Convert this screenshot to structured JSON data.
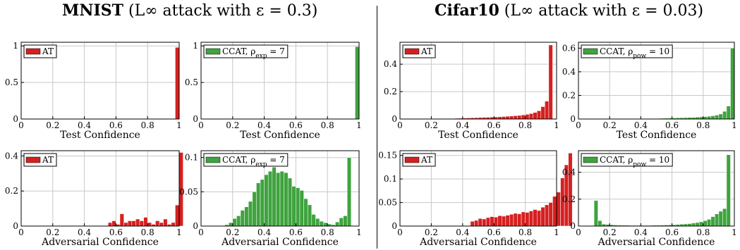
{
  "titles": {
    "left": {
      "bold": "MNIST",
      "rest": " (L∞ attack with ε = 0.3)"
    },
    "right": {
      "bold": "Cifar10",
      "rest": " (L∞ attack with ε = 0.03)"
    }
  },
  "colors": {
    "AT": "#d62020",
    "CCAT": "#3fa33f",
    "grid": "#c8c8c8"
  },
  "chart_data": [
    {
      "id": "mnist-test-at",
      "type": "bar",
      "xlabel": "Test Confidence",
      "ylabel": "",
      "xlim": [
        0,
        1
      ],
      "ylim": [
        0,
        1.05
      ],
      "xticks": [
        "0",
        "0.2",
        "0.4",
        "0.6",
        "0.8",
        "1"
      ],
      "yticks": [
        {
          "v": 0,
          "label": "0"
        },
        {
          "v": 0.5,
          "label": "0.5"
        },
        {
          "v": 1,
          "label": "1"
        }
      ],
      "legend": "AT",
      "legend_sub": "",
      "legend_tail": "",
      "color_key": "AT",
      "bins_start": 0.975,
      "bin_width": 0.025,
      "values": [
        0.98
      ]
    },
    {
      "id": "mnist-test-ccat",
      "type": "bar",
      "xlabel": "Test Confidence",
      "ylabel": "",
      "xlim": [
        0,
        1
      ],
      "ylim": [
        0,
        1.05
      ],
      "xticks": [
        "0",
        "0.2",
        "0.4",
        "0.6",
        "0.8",
        "1"
      ],
      "yticks": [
        {
          "v": 0,
          "label": "0"
        },
        {
          "v": 0.5,
          "label": "0.5"
        },
        {
          "v": 1,
          "label": "1"
        }
      ],
      "legend": "CCAT, ρ",
      "legend_sub": "exp",
      "legend_tail": " = 7",
      "color_key": "CCAT",
      "bins_start": 0.975,
      "bin_width": 0.025,
      "values": [
        0.99
      ]
    },
    {
      "id": "mnist-adv-at",
      "type": "bar",
      "xlabel": "Adversarial Confidence",
      "ylabel": "",
      "xlim": [
        0,
        1
      ],
      "ylim": [
        0,
        0.43
      ],
      "xticks": [
        "0",
        "0.2",
        "0.4",
        "0.6",
        "0.8",
        "1"
      ],
      "yticks": [
        {
          "v": 0,
          "label": "0"
        },
        {
          "v": 0.2,
          "label": "0.2"
        },
        {
          "v": 0.4,
          "label": "0.4"
        }
      ],
      "legend": "AT",
      "legend_sub": "",
      "legend_tail": "",
      "color_key": "AT",
      "bins_start": 0.55,
      "bin_width": 0.025,
      "values": [
        0.02,
        0.03,
        0.01,
        0.07,
        0.02,
        0.03,
        0.03,
        0.04,
        0.03,
        0.05,
        0.02,
        0.01,
        0.03,
        0.02,
        0.04,
        0.01,
        0.02,
        0.12,
        0.42
      ]
    },
    {
      "id": "mnist-adv-ccat",
      "type": "bar",
      "xlabel": "Adversarial Confidence",
      "ylabel": "",
      "xlim": [
        0,
        1
      ],
      "ylim": [
        0,
        0.11
      ],
      "xticks": [
        "0",
        "0.2",
        "0.4",
        "0.6",
        "0.8",
        "1"
      ],
      "yticks": [
        {
          "v": 0,
          "label": "0"
        },
        {
          "v": 0.05,
          "label": "0.05"
        },
        {
          "v": 0.1,
          "label": "0.1"
        }
      ],
      "legend": "CCAT, ρ",
      "legend_sub": "exp",
      "legend_tail": " = 7",
      "color_key": "CCAT",
      "bins_start": 0.15,
      "bin_width": 0.025,
      "values": [
        0.002,
        0.005,
        0.011,
        0.015,
        0.023,
        0.028,
        0.036,
        0.05,
        0.063,
        0.068,
        0.075,
        0.08,
        0.086,
        0.078,
        0.08,
        0.078,
        0.07,
        0.058,
        0.056,
        0.052,
        0.04,
        0.031,
        0.017,
        0.011,
        0.007,
        0.005,
        0.003,
        0.002,
        0.006,
        0.012,
        0.015,
        0.1
      ]
    },
    {
      "id": "cifar-test-at",
      "type": "bar",
      "xlabel": "Test Confidence",
      "ylabel": "",
      "xlim": [
        0,
        1
      ],
      "ylim": [
        0,
        0.56
      ],
      "xticks": [
        "0",
        "0.2",
        "0.4",
        "0.6",
        "0.8",
        "1"
      ],
      "yticks": [
        {
          "v": 0,
          "label": "0"
        },
        {
          "v": 0.2,
          "label": "0.2"
        },
        {
          "v": 0.4,
          "label": "0.4"
        }
      ],
      "legend": "AT",
      "legend_sub": "",
      "legend_tail": "",
      "color_key": "AT",
      "bins_start": 0.25,
      "bin_width": 0.025,
      "values": [
        0.001,
        0.002,
        0.003,
        0.004,
        0.005,
        0.006,
        0.007,
        0.008,
        0.009,
        0.01,
        0.011,
        0.012,
        0.013,
        0.014,
        0.015,
        0.016,
        0.018,
        0.02,
        0.022,
        0.024,
        0.026,
        0.03,
        0.034,
        0.04,
        0.048,
        0.06,
        0.09,
        0.13,
        0.54
      ]
    },
    {
      "id": "cifar-test-ccat",
      "type": "bar",
      "xlabel": "Test Confidence",
      "ylabel": "",
      "xlim": [
        0,
        1
      ],
      "ylim": [
        0,
        0.65
      ],
      "xticks": [
        "0",
        "0.2",
        "0.4",
        "0.6",
        "0.8",
        "1"
      ],
      "yticks": [
        {
          "v": 0,
          "label": "0"
        },
        {
          "v": 0.2,
          "label": "0.2"
        },
        {
          "v": 0.4,
          "label": "0.4"
        },
        {
          "v": 0.6,
          "label": "0.6"
        }
      ],
      "legend": "CCAT, ρ",
      "legend_sub": "pow",
      "legend_tail": " = 10",
      "color_key": "CCAT",
      "bins_start": 0.45,
      "bin_width": 0.025,
      "values": [
        0.003,
        0.004,
        0.005,
        0.006,
        0.007,
        0.008,
        0.009,
        0.01,
        0.011,
        0.012,
        0.013,
        0.014,
        0.016,
        0.018,
        0.02,
        0.023,
        0.027,
        0.033,
        0.042,
        0.065,
        0.11,
        0.6
      ]
    },
    {
      "id": "cifar-adv-at",
      "type": "bar",
      "xlabel": "Adversarial Confidence",
      "ylabel": "",
      "xlim": [
        0,
        1
      ],
      "ylim": [
        0,
        0.16
      ],
      "xticks": [
        "0",
        "0.2",
        "0.4",
        "0.6",
        "0.8",
        "1"
      ],
      "yticks": [
        {
          "v": 0,
          "label": "0"
        },
        {
          "v": 0.05,
          "label": "0.05"
        },
        {
          "v": 0.1,
          "label": "0.1"
        },
        {
          "v": 0.15,
          "label": "0.15"
        }
      ],
      "legend": "AT",
      "legend_sub": "",
      "legend_tail": "",
      "color_key": "AT",
      "bins_start": 0.45,
      "bin_width": 0.025,
      "values": [
        0.01,
        0.012,
        0.016,
        0.015,
        0.018,
        0.02,
        0.019,
        0.022,
        0.021,
        0.023,
        0.025,
        0.027,
        0.026,
        0.03,
        0.029,
        0.032,
        0.035,
        0.033,
        0.04,
        0.045,
        0.05,
        0.063,
        0.072,
        0.102,
        0.13,
        0.155
      ]
    },
    {
      "id": "cifar-adv-ccat",
      "type": "bar",
      "xlabel": "Adversarial Confidence",
      "ylabel": "",
      "xlim": [
        0,
        1
      ],
      "ylim": [
        0,
        0.56
      ],
      "xticks": [
        "0",
        "0.2",
        "0.4",
        "0.6",
        "0.8",
        "1"
      ],
      "yticks": [
        {
          "v": 0,
          "label": "0"
        },
        {
          "v": 0.2,
          "label": "0.2"
        },
        {
          "v": 0.4,
          "label": "0.4"
        }
      ],
      "legend": "CCAT, ρ",
      "legend_sub": "pow",
      "legend_tail": " = 10",
      "color_key": "CCAT",
      "bins_start": 0.1,
      "bin_width": 0.025,
      "values": [
        0.19,
        0.04,
        0.015,
        0.012,
        0.01,
        0.008,
        0.007,
        0.006,
        0.006,
        0.005,
        0.005,
        0.005,
        0.005,
        0.005,
        0.005,
        0.006,
        0.006,
        0.007,
        0.008,
        0.009,
        0.01,
        0.012,
        0.014,
        0.016,
        0.018,
        0.022,
        0.026,
        0.032,
        0.04,
        0.05,
        0.07,
        0.09,
        0.11,
        0.13,
        0.53
      ]
    }
  ]
}
